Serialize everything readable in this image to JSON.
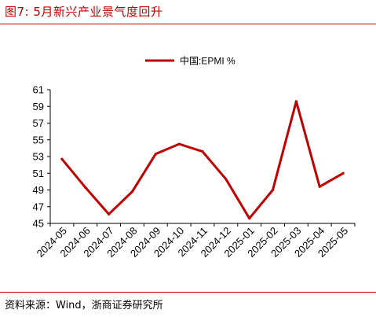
{
  "figure": {
    "title": "图7:   5月新兴产业景气度回升",
    "source": "资料来源：Wind，浙商证券研究所",
    "accent_color": "#c00000"
  },
  "chart_data": {
    "type": "line",
    "categories": [
      "2024-05",
      "2024-06",
      "2024-07",
      "2024-08",
      "2024-09",
      "2024-10",
      "2024-11",
      "2024-12",
      "2025-01",
      "2025-02",
      "2025-03",
      "2025-04",
      "2025-05"
    ],
    "series": [
      {
        "name": "中国:EPMI %",
        "color": "#c00000",
        "values": [
          52.7,
          49.3,
          46.1,
          48.8,
          53.3,
          54.5,
          53.6,
          50.3,
          45.6,
          49.0,
          59.6,
          49.4,
          51.0
        ]
      }
    ],
    "y_ticks": [
      45,
      47,
      49,
      51,
      53,
      55,
      57,
      59,
      61
    ],
    "ylim": [
      45,
      61
    ],
    "xlabel": "",
    "ylabel": "",
    "grid": false,
    "legend_position": "top"
  }
}
